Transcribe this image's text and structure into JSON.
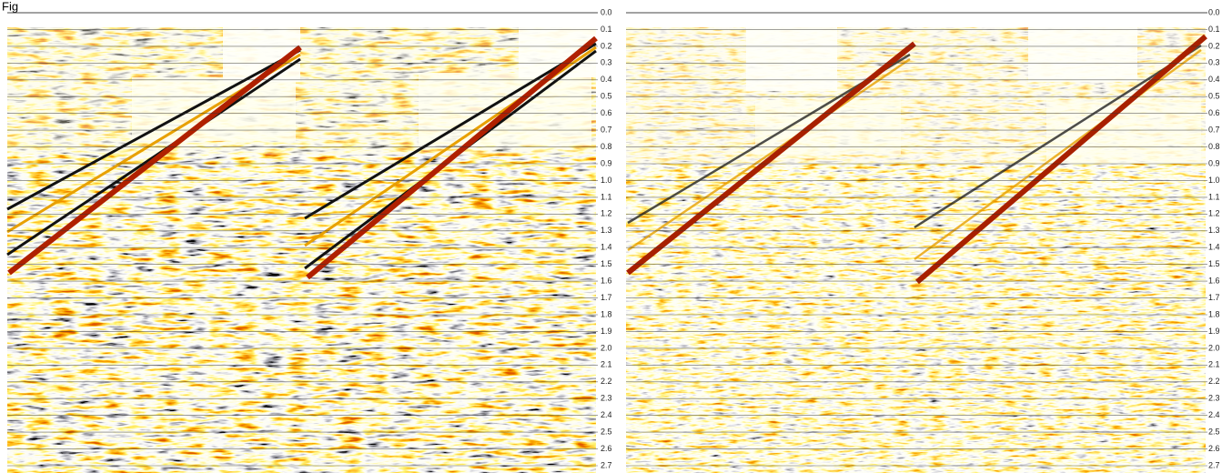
{
  "figure_label": "Fig",
  "panels": [
    {
      "ticks": [
        "0.0",
        "0.1",
        "0.2",
        "0.3",
        "0.4",
        "0.5",
        "0.6",
        "0.7",
        "0.8",
        "0.9",
        "1.0",
        "1.1",
        "1.2",
        "1.3",
        "1.4",
        "1.5",
        "1.6",
        "1.7",
        "1.8",
        "1.9",
        "2.0",
        "2.1",
        "2.2",
        "2.3",
        "2.4",
        "2.5",
        "2.6",
        "2.7"
      ]
    },
    {
      "ticks": [
        "0.0",
        "0.1",
        "0.2",
        "0.3",
        "0.4",
        "0.5",
        "0.6",
        "0.7",
        "0.8",
        "0.9",
        "1.0",
        "1.1",
        "1.2",
        "1.3",
        "1.4",
        "1.5",
        "1.6",
        "1.7",
        "1.8",
        "1.9",
        "2.0",
        "2.1",
        "2.2",
        "2.3",
        "2.4",
        "2.5",
        "2.6",
        "2.7"
      ]
    }
  ]
}
